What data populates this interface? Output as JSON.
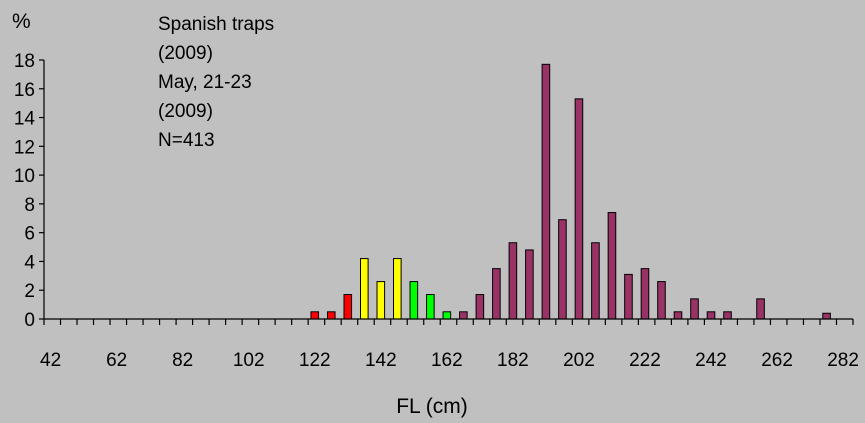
{
  "chart_data": {
    "type": "bar",
    "ylabel": "%",
    "xlabel": "FL (cm)",
    "annotations": [
      "Spanish traps",
      "(2009)",
      "May, 21-23",
      "(2009)",
      "N=413"
    ],
    "xlim": [
      40,
      285
    ],
    "ylim": [
      0,
      18
    ],
    "yticks": [
      0,
      2,
      4,
      6,
      8,
      10,
      12,
      14,
      16,
      18
    ],
    "xtick_labels": [
      42,
      62,
      82,
      102,
      122,
      142,
      162,
      182,
      202,
      222,
      242,
      262,
      282
    ],
    "grid": false,
    "bars": [
      {
        "x": 122,
        "value": 0.5,
        "color": "#ff0000"
      },
      {
        "x": 127,
        "value": 0.5,
        "color": "#ff0000"
      },
      {
        "x": 132,
        "value": 1.7,
        "color": "#ff0000"
      },
      {
        "x": 137,
        "value": 4.2,
        "color": "#ffff00"
      },
      {
        "x": 142,
        "value": 2.6,
        "color": "#ffff00"
      },
      {
        "x": 147,
        "value": 4.2,
        "color": "#ffff00"
      },
      {
        "x": 152,
        "value": 2.6,
        "color": "#00ff00"
      },
      {
        "x": 157,
        "value": 1.7,
        "color": "#00ff00"
      },
      {
        "x": 162,
        "value": 0.5,
        "color": "#00ff00"
      },
      {
        "x": 167,
        "value": 0.5,
        "color": "#993366"
      },
      {
        "x": 172,
        "value": 1.7,
        "color": "#993366"
      },
      {
        "x": 177,
        "value": 3.5,
        "color": "#993366"
      },
      {
        "x": 182,
        "value": 5.3,
        "color": "#993366"
      },
      {
        "x": 187,
        "value": 4.8,
        "color": "#993366"
      },
      {
        "x": 192,
        "value": 17.7,
        "color": "#993366"
      },
      {
        "x": 197,
        "value": 6.9,
        "color": "#993366"
      },
      {
        "x": 202,
        "value": 15.3,
        "color": "#993366"
      },
      {
        "x": 207,
        "value": 5.3,
        "color": "#993366"
      },
      {
        "x": 212,
        "value": 7.4,
        "color": "#993366"
      },
      {
        "x": 217,
        "value": 3.1,
        "color": "#993366"
      },
      {
        "x": 222,
        "value": 3.5,
        "color": "#993366"
      },
      {
        "x": 227,
        "value": 2.6,
        "color": "#993366"
      },
      {
        "x": 232,
        "value": 0.5,
        "color": "#993366"
      },
      {
        "x": 237,
        "value": 1.4,
        "color": "#993366"
      },
      {
        "x": 242,
        "value": 0.5,
        "color": "#993366"
      },
      {
        "x": 247,
        "value": 0.5,
        "color": "#993366"
      },
      {
        "x": 257,
        "value": 1.4,
        "color": "#993366"
      },
      {
        "x": 277,
        "value": 0.4,
        "color": "#993366"
      }
    ]
  }
}
